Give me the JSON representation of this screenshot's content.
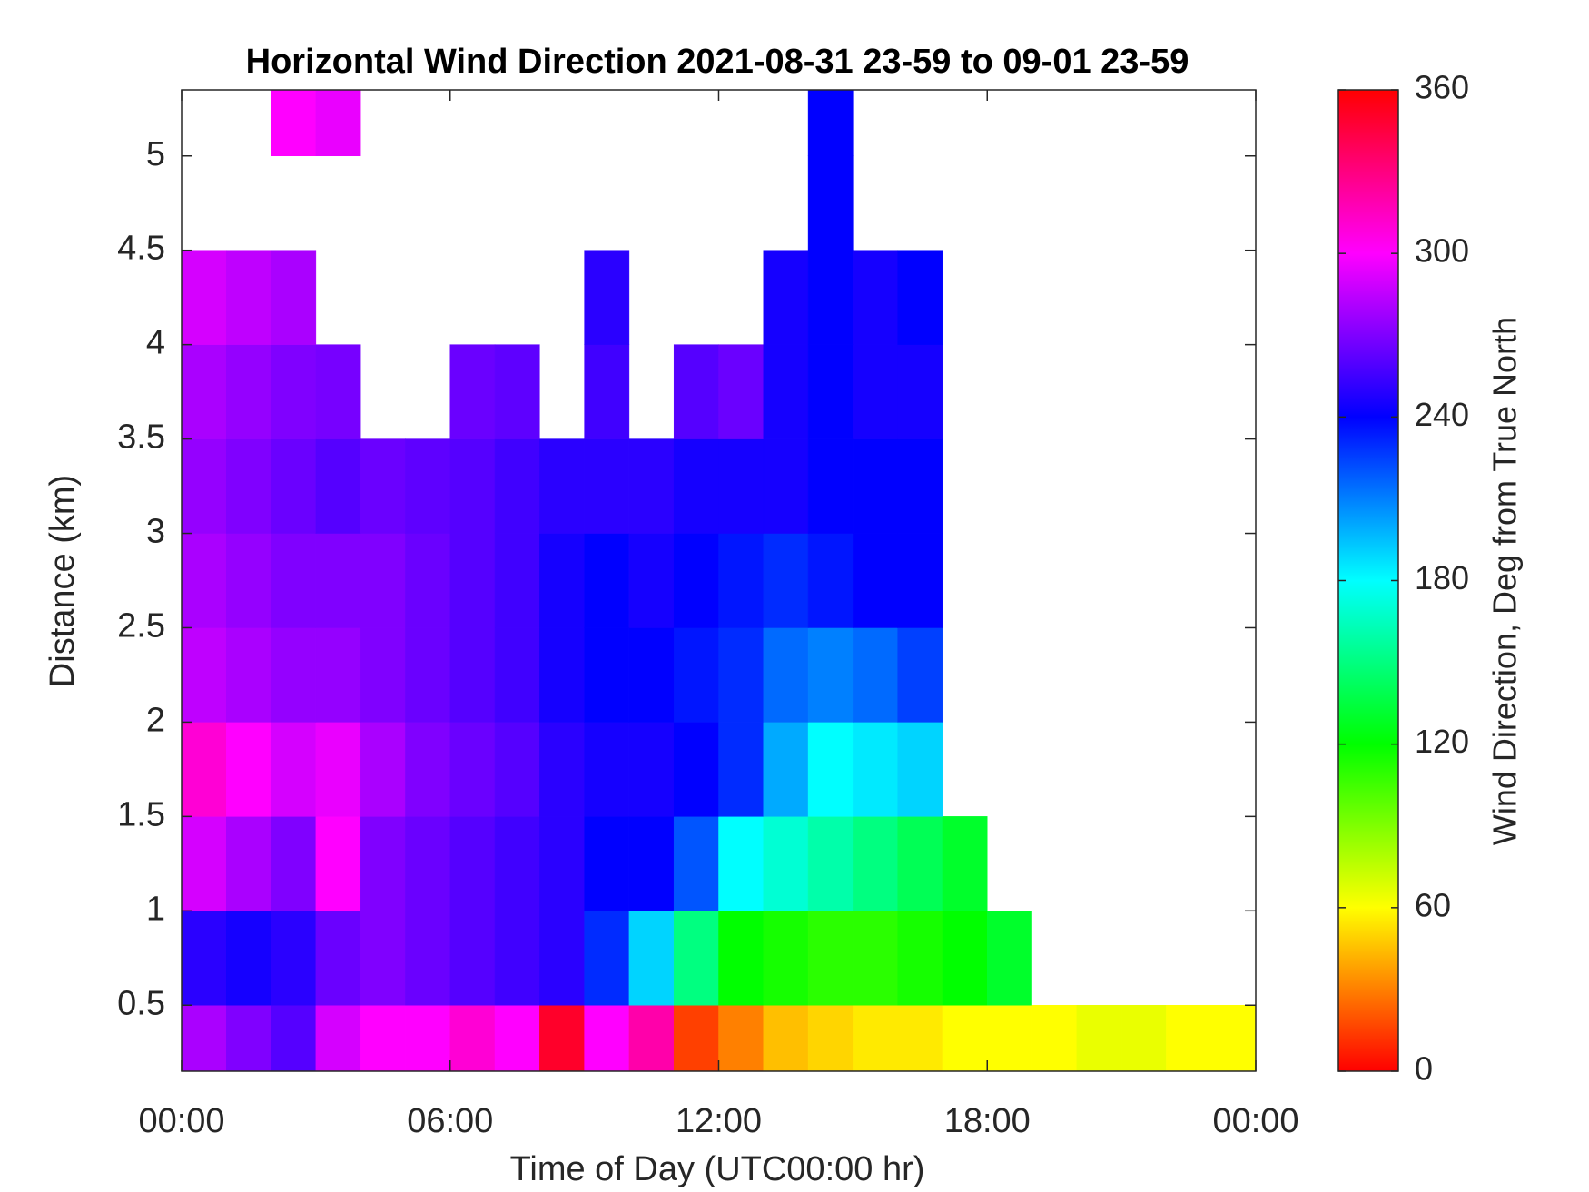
{
  "chart_data": {
    "type": "heatmap",
    "title": "Horizontal Wind Direction 2021-08-31 23-59 to 09-01 23-59",
    "x_label": "Time of Day (UTC00:00 hr)",
    "y_label": "Distance (km)",
    "colorbar_label": "Wind Direction, Deg from True North",
    "colormap": "hsv",
    "x": [
      0.5,
      1.5,
      2.5,
      3.5,
      4.5,
      5.5,
      6.5,
      7.5,
      8.5,
      9.5,
      10.5,
      11.5,
      12.5,
      13.5,
      14.5,
      15.5,
      16.5,
      17.5,
      18.5,
      19.5,
      20.5,
      21.5,
      22.5,
      23.5
    ],
    "y": [
      0.25,
      0.75,
      1.25,
      1.75,
      2.25,
      2.75,
      3.25,
      3.75,
      4.25,
      4.75,
      5.25
    ],
    "values": [
      [
        280,
        270,
        260,
        290,
        300,
        300,
        310,
        300,
        350,
        300,
        320,
        15,
        30,
        45,
        50,
        55,
        55,
        60,
        60,
        60,
        65,
        65,
        60,
        60
      ],
      [
        250,
        245,
        250,
        265,
        270,
        265,
        260,
        255,
        250,
        230,
        190,
        150,
        120,
        115,
        110,
        110,
        115,
        120,
        130,
        null,
        null,
        null,
        null,
        null
      ],
      [
        290,
        280,
        270,
        300,
        270,
        265,
        260,
        255,
        250,
        240,
        240,
        220,
        180,
        170,
        160,
        150,
        140,
        130,
        null,
        null,
        null,
        null,
        null,
        null
      ],
      [
        310,
        300,
        290,
        295,
        280,
        270,
        265,
        260,
        250,
        245,
        245,
        240,
        230,
        200,
        180,
        185,
        190,
        null,
        null,
        null,
        null,
        null,
        null,
        null
      ],
      [
        285,
        280,
        275,
        275,
        270,
        265,
        260,
        255,
        245,
        240,
        240,
        235,
        230,
        215,
        210,
        215,
        225,
        null,
        null,
        null,
        null,
        null,
        null,
        null
      ],
      [
        280,
        275,
        270,
        270,
        270,
        265,
        260,
        255,
        245,
        240,
        245,
        240,
        235,
        230,
        235,
        240,
        240,
        null,
        null,
        null,
        null,
        null,
        null,
        null
      ],
      [
        275,
        270,
        265,
        260,
        265,
        262,
        260,
        255,
        250,
        250,
        250,
        245,
        245,
        245,
        240,
        240,
        240,
        null,
        null,
        null,
        null,
        null,
        null,
        null
      ],
      [
        280,
        275,
        270,
        268,
        null,
        null,
        265,
        262,
        null,
        255,
        null,
        260,
        265,
        245,
        240,
        245,
        245,
        null,
        null,
        null,
        null,
        null,
        null,
        null
      ],
      [
        290,
        285,
        280,
        null,
        null,
        null,
        null,
        null,
        null,
        250,
        null,
        null,
        null,
        245,
        240,
        245,
        240,
        null,
        null,
        null,
        null,
        null,
        null,
        null
      ],
      [
        null,
        null,
        null,
        null,
        null,
        null,
        null,
        null,
        null,
        null,
        null,
        null,
        null,
        null,
        240,
        null,
        null,
        null,
        null,
        null,
        null,
        null,
        null,
        null
      ],
      [
        null,
        null,
        300,
        295,
        null,
        null,
        null,
        null,
        null,
        null,
        null,
        null,
        null,
        null,
        240,
        null,
        null,
        null,
        null,
        null,
        null,
        null,
        null,
        null
      ]
    ],
    "xlim": [
      0,
      24
    ],
    "xticks": [
      {
        "value": 0,
        "label": "00:00"
      },
      {
        "value": 6,
        "label": "06:00"
      },
      {
        "value": 12,
        "label": "12:00"
      },
      {
        "value": 18,
        "label": "18:00"
      },
      {
        "value": 24,
        "label": "00:00"
      }
    ],
    "ylim": [
      0.15,
      5.35
    ],
    "yticks": [
      0.5,
      1,
      1.5,
      2,
      2.5,
      3,
      3.5,
      4,
      4.5,
      5
    ],
    "clim": [
      0,
      360
    ],
    "cticks": [
      0,
      60,
      120,
      180,
      240,
      300,
      360
    ]
  }
}
